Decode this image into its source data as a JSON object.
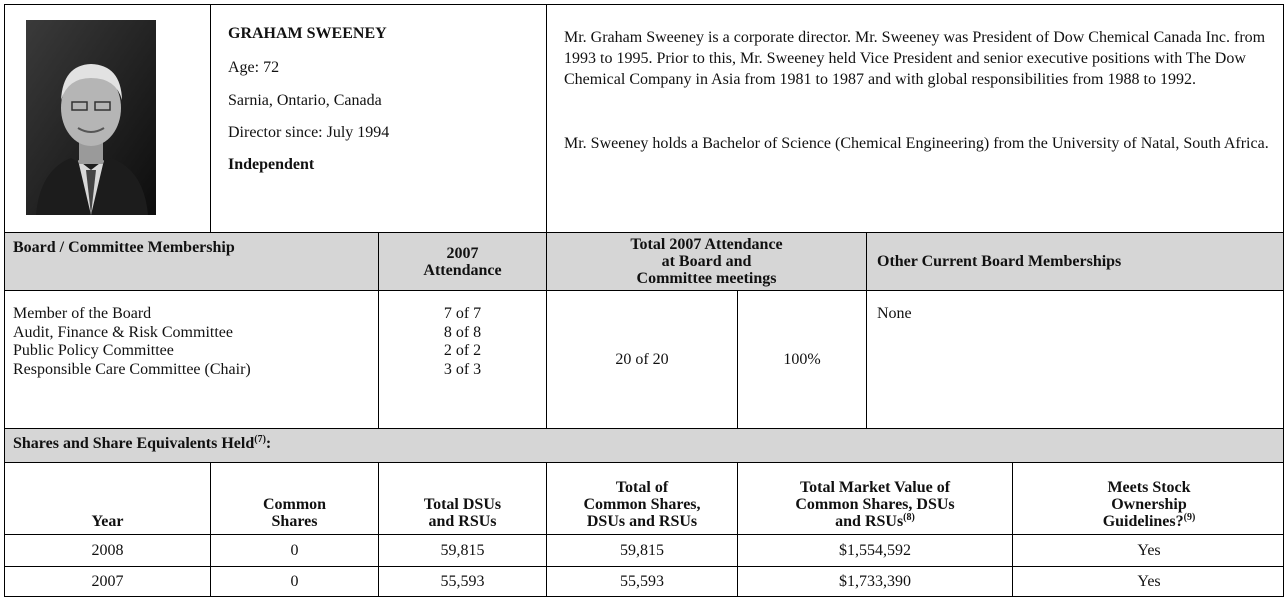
{
  "profile": {
    "name": "GRAHAM SWEENEY",
    "age": "Age: 72",
    "location": "Sarnia, Ontario, Canada",
    "director_since": "Director since: July 1994",
    "status": "Independent",
    "bio": [
      "Mr. Graham Sweeney is a corporate director. Mr. Sweeney was President of Dow Chemical Canada Inc. from 1993 to 1995. Prior to this, Mr. Sweeney held Vice President and senior executive positions with The Dow Chemical Company in Asia from 1981 to 1987 and with global responsibilities from 1988 to 1992.",
      "Mr. Sweeney holds a Bachelor of Science (Chemical Engineering) from the University of Natal, South Africa."
    ]
  },
  "membership": {
    "headers": [
      "Board / Committee Membership",
      [
        "2007",
        "Attendance"
      ],
      [
        "Total 2007 Attendance",
        "at Board and",
        "Committee meetings"
      ],
      "Other Current Board Memberships"
    ],
    "committees": [
      "Member of the Board",
      "Audit, Finance & Risk Committee",
      "Public Policy Committee",
      "Responsible Care Committee (Chair)"
    ],
    "attendance": [
      "7 of 7",
      "8 of 8",
      "2 of 2",
      "3 of 3"
    ],
    "total_attendance": "20 of 20",
    "total_percent": "100%",
    "other_boards": "None"
  },
  "shares": {
    "title": {
      "text": "Shares and Share Equivalents Held",
      "note": "(7)",
      "suffix": ":"
    },
    "columns": [
      {
        "lines": [
          "Year"
        ]
      },
      {
        "lines": [
          "Common",
          "Shares"
        ]
      },
      {
        "lines": [
          "Total DSUs",
          "and RSUs"
        ]
      },
      {
        "lines": [
          "Total of",
          "Common Shares,",
          "DSUs and RSUs"
        ]
      },
      {
        "lines": [
          "Total Market Value of",
          "Common Shares, DSUs",
          "and RSUs"
        ],
        "note": "(8)"
      },
      {
        "lines": [
          "Meets Stock",
          "Ownership",
          "Guidelines?"
        ],
        "note": "(9)"
      }
    ],
    "rows": [
      [
        "2008",
        "0",
        "59,815",
        "59,815",
        "$1,554,592",
        "Yes"
      ],
      [
        "2007",
        "0",
        "55,593",
        "55,593",
        "$1,733,390",
        "Yes"
      ]
    ]
  }
}
